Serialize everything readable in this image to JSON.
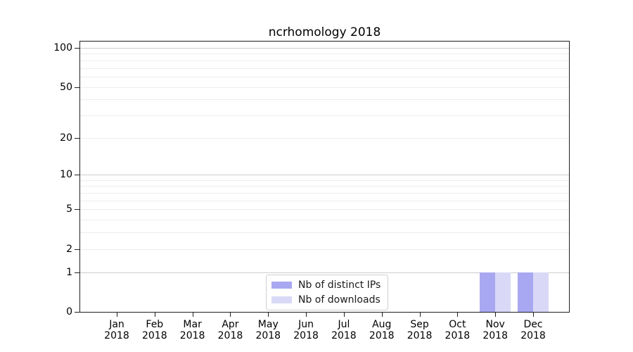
{
  "chart_data": {
    "type": "bar",
    "title": "ncrhomology 2018",
    "categories": [
      "Jan 2018",
      "Feb 2018",
      "Mar 2018",
      "Apr 2018",
      "May 2018",
      "Jun 2018",
      "Jul 2018",
      "Aug 2018",
      "Sep 2018",
      "Oct 2018",
      "Nov 2018",
      "Dec 2018"
    ],
    "series": [
      {
        "name": "Nb of distinct IPs",
        "color": "#a8a8f2",
        "values": [
          0,
          0,
          0,
          0,
          0,
          0,
          0,
          0,
          0,
          0,
          1,
          1
        ]
      },
      {
        "name": "Nb of downloads",
        "color": "#d9d9f7",
        "values": [
          0,
          0,
          0,
          0,
          0,
          0,
          0,
          0,
          0,
          0,
          1,
          1
        ]
      }
    ],
    "xlabel": "",
    "ylabel": "",
    "yscale": "log1p",
    "ylim": [
      0,
      115
    ],
    "y_tick_labels": [
      0,
      1,
      2,
      5,
      10,
      20,
      50,
      100
    ],
    "y_gridlines_major": [
      1,
      10,
      100
    ],
    "y_gridlines_minor": [
      2,
      3,
      4,
      5,
      6,
      7,
      8,
      9,
      20,
      30,
      40,
      50,
      60,
      70,
      80,
      90
    ],
    "grid": true,
    "legend_position": "lower center"
  },
  "colors": {
    "background": "#ffffff",
    "major_gridline": "#cccccc",
    "minor_gridline": "#ededed",
    "axis_spine": "#1f1f1f",
    "text": "#000000",
    "legend_border": "#cfcfcf"
  }
}
